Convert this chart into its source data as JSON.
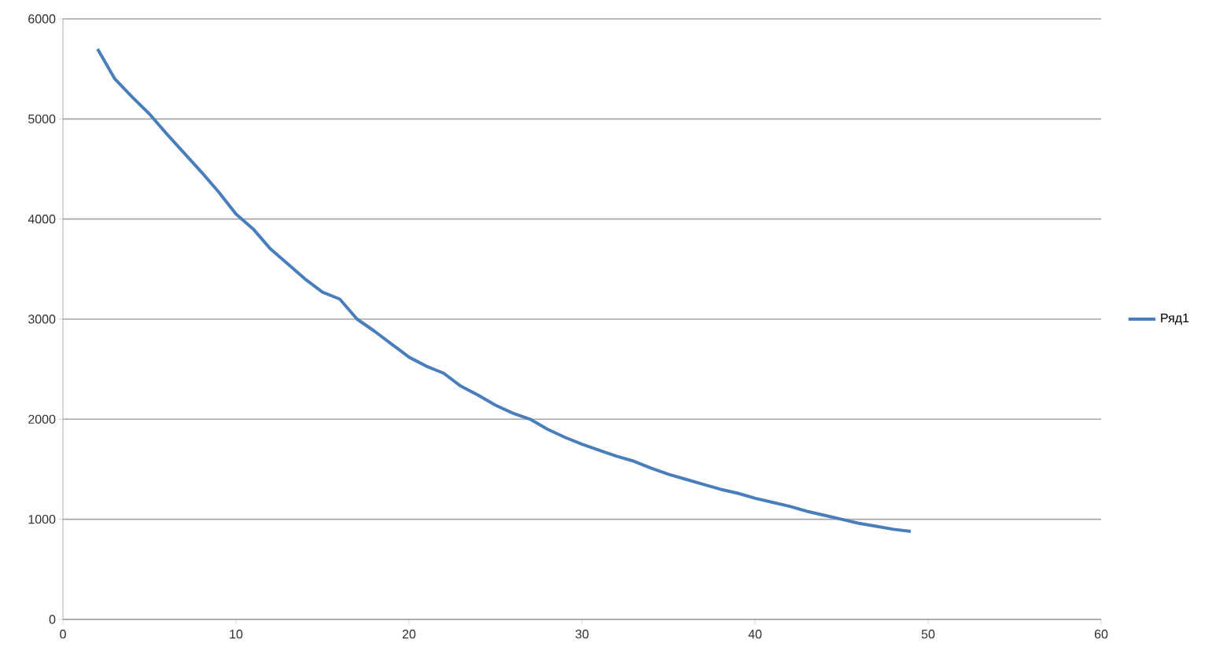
{
  "chart_data": {
    "type": "line",
    "x": [
      2,
      3,
      4,
      5,
      6,
      7,
      8,
      9,
      10,
      11,
      12,
      13,
      14,
      15,
      16,
      17,
      18,
      19,
      20,
      21,
      22,
      23,
      24,
      25,
      26,
      27,
      28,
      29,
      30,
      31,
      32,
      33,
      34,
      35,
      36,
      37,
      38,
      39,
      40,
      41,
      42,
      43,
      44,
      45,
      46,
      47,
      48,
      49
    ],
    "series": [
      {
        "name": "Ряд1",
        "color": "#4a7ebb",
        "values": [
          5700,
          5400,
          5220,
          5050,
          4850,
          4660,
          4470,
          4270,
          4050,
          3900,
          3700,
          3550,
          3400,
          3270,
          3200,
          3000,
          2880,
          2750,
          2620,
          2530,
          2460,
          2330,
          2240,
          2140,
          2060,
          2000,
          1900,
          1820,
          1750,
          1690,
          1630,
          1580,
          1510,
          1450,
          1400,
          1350,
          1300,
          1260,
          1210,
          1170,
          1130,
          1080,
          1040,
          1000,
          960,
          930,
          900,
          880
        ]
      }
    ],
    "xlim": [
      0,
      60
    ],
    "xticks": [
      0,
      10,
      20,
      30,
      40,
      50,
      60
    ],
    "ylim": [
      0,
      6000
    ],
    "yticks": [
      0,
      1000,
      2000,
      3000,
      4000,
      5000,
      6000
    ],
    "grid": "y",
    "legend": "right",
    "marker": "none",
    "line_style": "solid"
  }
}
